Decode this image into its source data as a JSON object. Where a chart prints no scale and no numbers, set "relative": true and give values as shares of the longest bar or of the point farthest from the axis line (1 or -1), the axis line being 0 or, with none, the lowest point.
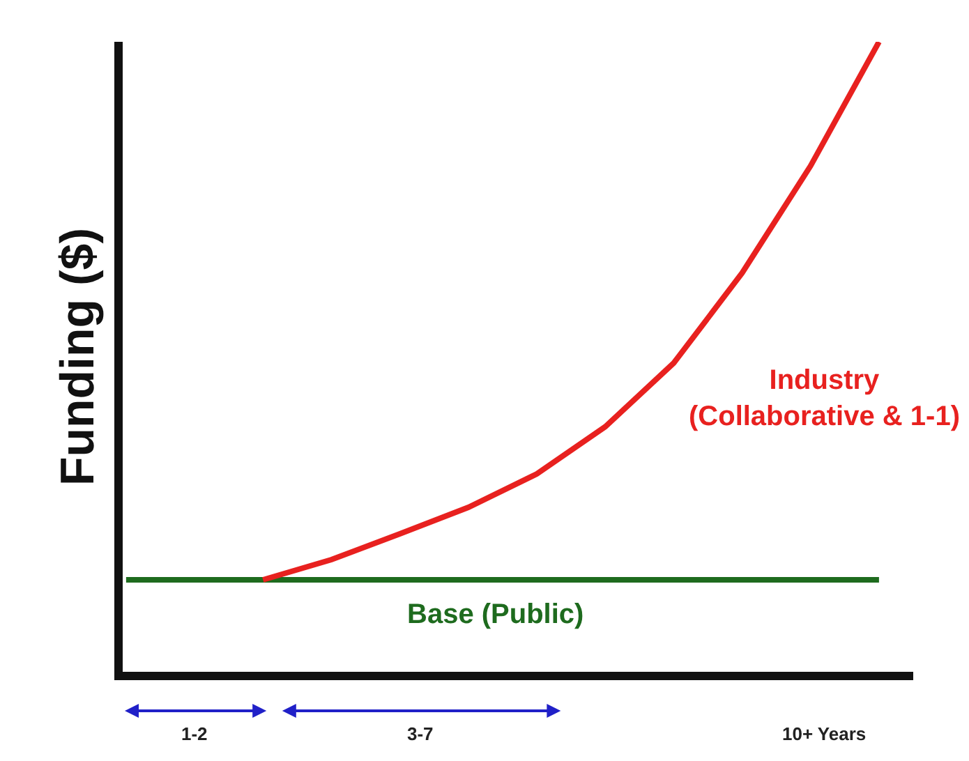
{
  "chart_data": {
    "type": "line",
    "relative": true,
    "ylabel": "Funding ($)",
    "legend": false,
    "marker": "none",
    "line_style": "solid",
    "categories": [
      null,
      null,
      null,
      null,
      null,
      null,
      null,
      null,
      null,
      null,
      null,
      null
    ],
    "series": [
      {
        "name": "Base (Public)",
        "color": "#1e6b1e",
        "values": [
          0.146,
          0.146,
          0.146,
          0.146,
          0.146,
          0.146,
          0.146,
          0.146,
          0.146,
          0.146,
          0.146,
          0.146
        ]
      },
      {
        "name": "Industry\n(Collaborative & 1-1)",
        "color": "#e8211f",
        "values": [
          null,
          null,
          0.146,
          0.178,
          0.219,
          0.261,
          0.314,
          0.389,
          0.49,
          0.633,
          0.803,
          1.0
        ]
      }
    ],
    "annotations": [
      "1-2",
      "3-7",
      "10+ Years"
    ]
  }
}
